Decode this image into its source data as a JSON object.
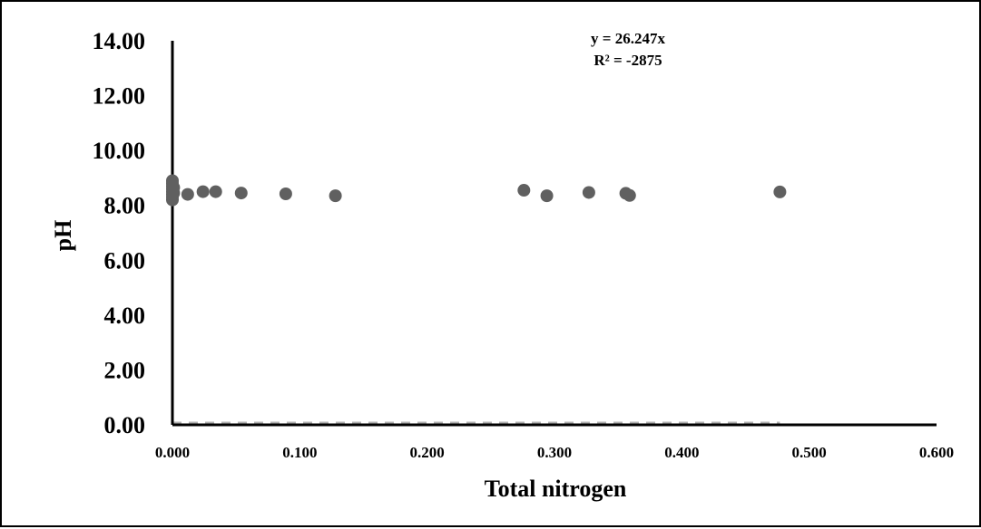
{
  "chart_data": {
    "type": "scatter",
    "title": "",
    "xlabel": "Total nitrogen",
    "ylabel": "pH",
    "xlim": [
      0,
      0.6
    ],
    "ylim": [
      0,
      14
    ],
    "x_ticks": [
      "0.000",
      "0.100",
      "0.200",
      "0.300",
      "0.400",
      "0.500",
      "0.600"
    ],
    "y_ticks": [
      "0.00",
      "2.00",
      "4.00",
      "6.00",
      "8.00",
      "10.00",
      "12.00",
      "14.00"
    ],
    "grid": false,
    "legend": "none",
    "marker_color": "#606060",
    "trendline": {
      "equation": "y = 26.247x",
      "r_squared": "R² = -2875",
      "style": "dashed",
      "color": "#b0b0b0"
    },
    "series": [
      {
        "points": [
          [
            0.0,
            8.2
          ],
          [
            0.0,
            8.3
          ],
          [
            0.0,
            8.4
          ],
          [
            0.0,
            8.5
          ],
          [
            0.0,
            8.6
          ],
          [
            0.0,
            8.7
          ],
          [
            0.0,
            8.8
          ],
          [
            0.0,
            8.9
          ],
          [
            0.001,
            8.45
          ],
          [
            0.001,
            8.65
          ],
          [
            0.012,
            8.4
          ],
          [
            0.024,
            8.5
          ],
          [
            0.034,
            8.5
          ],
          [
            0.054,
            8.45
          ],
          [
            0.089,
            8.42
          ],
          [
            0.128,
            8.35
          ],
          [
            0.276,
            8.55
          ],
          [
            0.294,
            8.35
          ],
          [
            0.327,
            8.47
          ],
          [
            0.356,
            8.44
          ],
          [
            0.359,
            8.36
          ],
          [
            0.477,
            8.49
          ]
        ]
      }
    ]
  }
}
